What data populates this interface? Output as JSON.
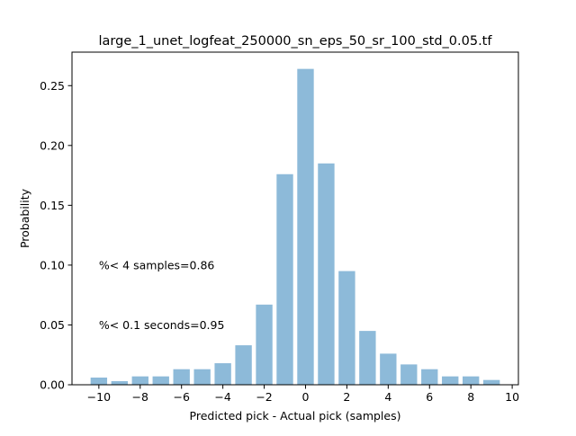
{
  "chart_data": {
    "type": "bar",
    "title": "large_1_unet_logfeat_250000_sn_eps_50_sr_100_std_0.05.tf",
    "xlabel": "Predicted pick - Actual pick (samples)",
    "ylabel": "Probability",
    "xlim": [
      -11.3,
      10.3
    ],
    "ylim": [
      0,
      0.278
    ],
    "x": [
      -10,
      -9,
      -8,
      -7,
      -6,
      -5,
      -4,
      -3,
      -2,
      -1,
      0,
      1,
      2,
      3,
      4,
      5,
      6,
      7,
      8,
      9
    ],
    "values": [
      0.006,
      0.003,
      0.007,
      0.007,
      0.013,
      0.013,
      0.018,
      0.033,
      0.067,
      0.176,
      0.264,
      0.185,
      0.095,
      0.045,
      0.026,
      0.017,
      0.013,
      0.007,
      0.007,
      0.004
    ],
    "bar_color": "#8dbad9",
    "xticks": [
      -10,
      -8,
      -6,
      -4,
      -2,
      0,
      2,
      4,
      6,
      8,
      10
    ],
    "xtick_labels": [
      "−10",
      "−8",
      "−6",
      "−4",
      "−2",
      "0",
      "2",
      "4",
      "6",
      "8",
      "10"
    ],
    "yticks": [
      0.0,
      0.05,
      0.1,
      0.15,
      0.2,
      0.25
    ],
    "ytick_labels": [
      "0.00",
      "0.05",
      "0.10",
      "0.15",
      "0.20",
      "0.25"
    ],
    "grid": false,
    "annotations": [
      {
        "text": "%< 4 samples=0.86",
        "x": -10,
        "y": 0.1
      },
      {
        "text": "%< 0.1 seconds=0.95",
        "x": -10,
        "y": 0.05
      }
    ]
  }
}
